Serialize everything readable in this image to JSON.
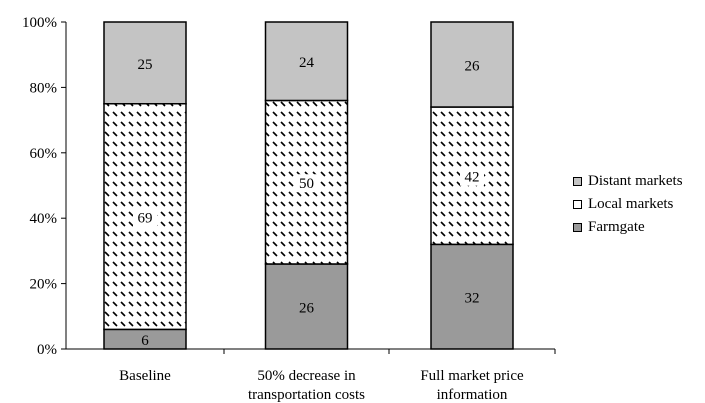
{
  "chart_data": {
    "type": "bar",
    "stacked": true,
    "percent": true,
    "categories": [
      [
        "Baseline"
      ],
      [
        "50% decrease in",
        "transportation costs"
      ],
      [
        "Full market price",
        "information"
      ]
    ],
    "series": [
      {
        "name": "Farmgate",
        "values": [
          6,
          26,
          32
        ],
        "color": "#9a9a9a",
        "pattern": "solid"
      },
      {
        "name": "Local markets",
        "values": [
          69,
          50,
          42
        ],
        "color": "#ffffff",
        "pattern": "dashed-diagonal"
      },
      {
        "name": "Distant markets",
        "values": [
          25,
          24,
          26
        ],
        "color": "#c4c4c4",
        "pattern": "solid"
      }
    ],
    "ylim": [
      0,
      100
    ],
    "yticks": [
      "0%",
      "20%",
      "40%",
      "60%",
      "80%",
      "100%"
    ],
    "legend": "right",
    "grid": false
  }
}
